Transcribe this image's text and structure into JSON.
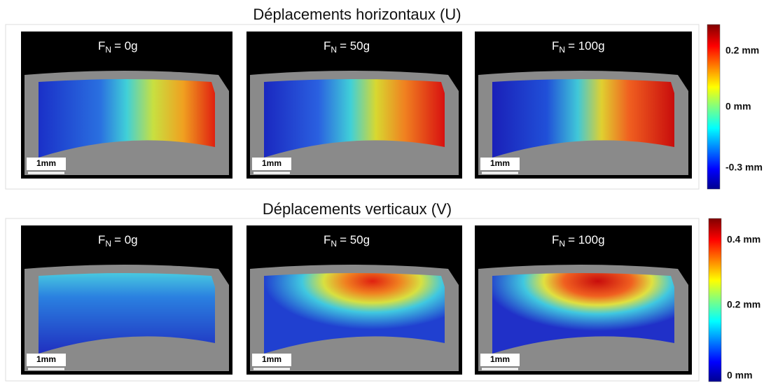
{
  "rows": [
    {
      "title": "Déplacements horizontaux (U)",
      "panels": [
        {
          "force": {
            "symbol": "F",
            "subscript": "N",
            "value": "= 0g"
          },
          "scale_bar": "1mm"
        },
        {
          "force": {
            "symbol": "F",
            "subscript": "N",
            "value": "= 50g"
          },
          "scale_bar": "1mm"
        },
        {
          "force": {
            "symbol": "F",
            "subscript": "N",
            "value": "= 100g"
          },
          "scale_bar": "1mm"
        }
      ],
      "colorbar": {
        "labels": [
          "0.2 mm",
          "0 mm",
          "-0.3 mm"
        ]
      }
    },
    {
      "title": "Déplacements verticaux (V)",
      "panels": [
        {
          "force": {
            "symbol": "F",
            "subscript": "N",
            "value": "= 0g"
          },
          "scale_bar": "1mm"
        },
        {
          "force": {
            "symbol": "F",
            "subscript": "N",
            "value": "= 50g"
          },
          "scale_bar": "1mm"
        },
        {
          "force": {
            "symbol": "F",
            "subscript": "N",
            "value": "= 100g"
          },
          "scale_bar": "1mm"
        }
      ],
      "colorbar": {
        "labels": [
          "0.4 mm",
          "0.2 mm",
          "0 mm"
        ]
      }
    }
  ]
}
